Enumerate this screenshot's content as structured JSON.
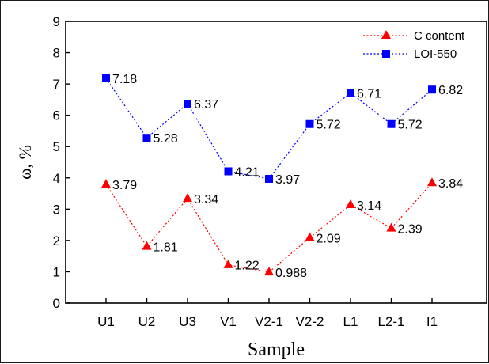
{
  "chart_data": {
    "type": "line",
    "title": "",
    "xlabel": "Sample",
    "ylabel": "ω, %",
    "categories": [
      "U1",
      "U2",
      "U3",
      "V1",
      "V2-1",
      "V2-2",
      "L1",
      "L2-1",
      "I1"
    ],
    "ylim": [
      0,
      9
    ],
    "yticks": [
      "0",
      "1",
      "2",
      "3",
      "4",
      "5",
      "6",
      "7",
      "8",
      "9"
    ],
    "grid": false,
    "legend_position": "top-right",
    "series": [
      {
        "name": "C content",
        "color": "#ff0000",
        "marker": "triangle",
        "line_style": "dotted",
        "values": [
          3.79,
          1.81,
          3.34,
          1.22,
          0.988,
          2.09,
          3.14,
          2.39,
          3.84
        ],
        "labels": [
          "3.79",
          "1.81",
          "3.34",
          "1.22",
          "0.988",
          "2.09",
          "3.14",
          "2.39",
          "3.84"
        ]
      },
      {
        "name": "LOI-550",
        "color": "#0000ff",
        "marker": "square",
        "line_style": "dotted",
        "values": [
          7.18,
          5.28,
          6.37,
          4.21,
          3.97,
          5.72,
          6.71,
          5.72,
          6.82
        ],
        "labels": [
          "7.18",
          "5.28",
          "6.37",
          "4.21",
          "3.97",
          "5.72",
          "6.71",
          "5.72",
          "6.82"
        ]
      }
    ]
  }
}
